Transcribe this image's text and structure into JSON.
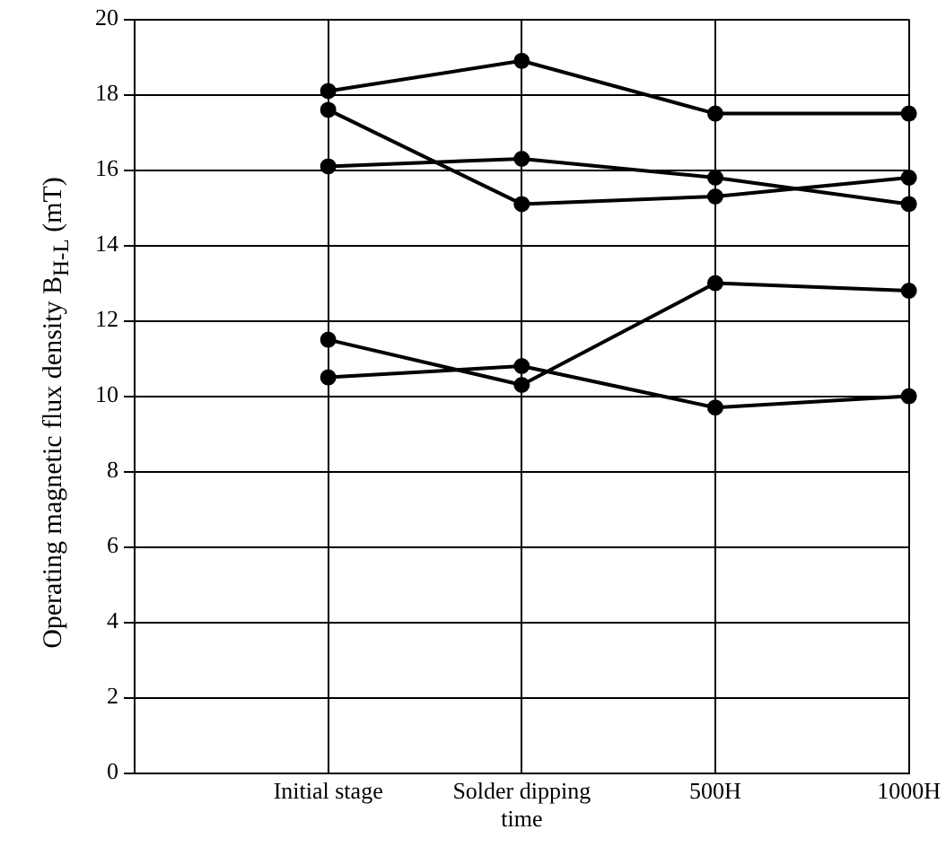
{
  "chart_data": {
    "type": "line",
    "ylabel": "Operating magnetic flux density  B$_{H-L}$  (mT)",
    "categories": [
      null,
      "Initial stage",
      "Solder dipping time",
      "500H",
      "1000H"
    ],
    "series": [
      {
        "color": "#000000",
        "values": [
          null,
          18.1,
          18.9,
          17.5,
          17.5
        ]
      },
      {
        "color": "#000000",
        "values": [
          null,
          17.6,
          15.1,
          15.3,
          15.8
        ]
      },
      {
        "color": "#000000",
        "values": [
          null,
          16.1,
          16.3,
          15.8,
          15.1
        ]
      },
      {
        "color": "#000000",
        "values": [
          null,
          11.5,
          10.3,
          13.0,
          12.8
        ]
      },
      {
        "color": "#000000",
        "values": [
          null,
          10.5,
          10.8,
          9.7,
          10.0
        ]
      }
    ],
    "ylim": [
      0,
      20
    ],
    "yticks": [
      0,
      2,
      4,
      6,
      8,
      10,
      12,
      14,
      16,
      18,
      20
    ],
    "grid": true,
    "marker": "circle",
    "line_style": "solid",
    "legend": false
  }
}
